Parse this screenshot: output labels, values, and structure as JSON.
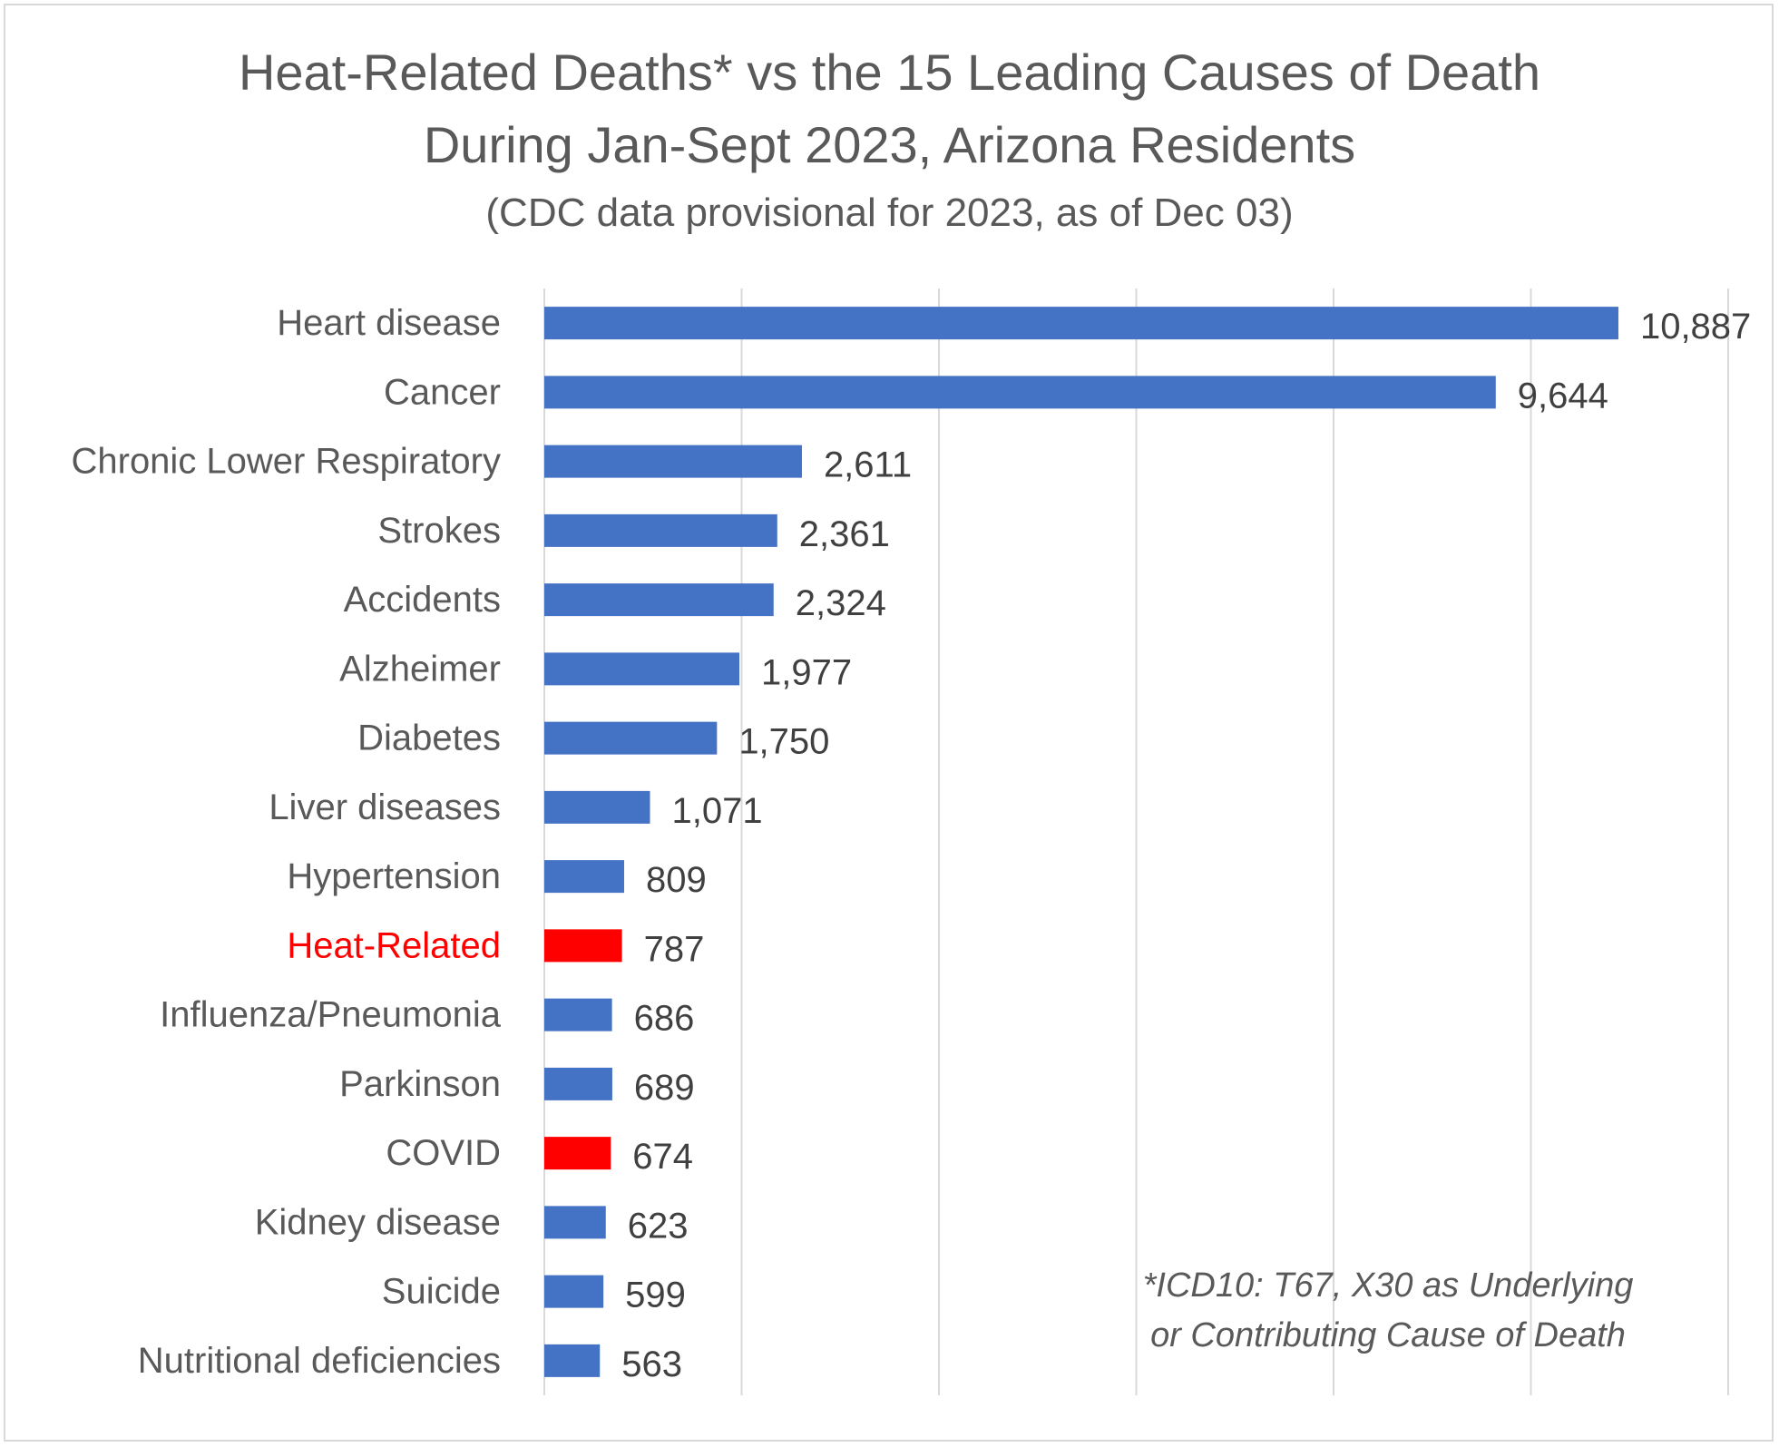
{
  "chart_data": {
    "type": "bar",
    "orientation": "horizontal",
    "title": [
      "Heat-Related Deaths* vs the 15 Leading Causes of Death",
      "During Jan-Sept 2023, Arizona Residents"
    ],
    "subtitle": "(CDC data provisional for 2023, as of Dec 03)",
    "categories": [
      "Heart disease",
      "Cancer",
      "Chronic Lower Respiratory",
      "Strokes",
      "Accidents",
      "Alzheimer",
      "Diabetes",
      "Liver diseases",
      "Hypertension",
      "Heat-Related",
      "Influenza/Pneumonia",
      "Parkinson",
      "COVID",
      "Kidney disease",
      "Suicide",
      "Nutritional deficiencies"
    ],
    "values": [
      10887,
      9644,
      2611,
      2361,
      2324,
      1977,
      1750,
      1071,
      809,
      787,
      686,
      689,
      674,
      623,
      599,
      563
    ],
    "value_labels": [
      "10,887",
      "9,644",
      "2,611",
      "2,361",
      "2,324",
      "1,977",
      "1,750",
      "1,071",
      "809",
      "787",
      "686",
      "689",
      "674",
      "623",
      "599",
      "563"
    ],
    "bar_colors": [
      "#4472c4",
      "#4472c4",
      "#4472c4",
      "#4472c4",
      "#4472c4",
      "#4472c4",
      "#4472c4",
      "#4472c4",
      "#4472c4",
      "#ff0000",
      "#4472c4",
      "#4472c4",
      "#ff0000",
      "#4472c4",
      "#4472c4",
      "#4472c4"
    ],
    "label_colors": [
      "#595959",
      "#595959",
      "#595959",
      "#595959",
      "#595959",
      "#595959",
      "#595959",
      "#595959",
      "#595959",
      "#ff0000",
      "#595959",
      "#595959",
      "#595959",
      "#595959",
      "#595959",
      "#595959"
    ],
    "xlim": [
      0,
      12000
    ],
    "x_gridlines": [
      0,
      2000,
      4000,
      6000,
      8000,
      10000,
      12000
    ],
    "grid": true,
    "xlabel": "",
    "ylabel": "",
    "footnote": [
      "*ICD10: T67, X30 as Underlying",
      "or Contributing Cause of Death"
    ]
  },
  "colors": {
    "bar_default": "#4472c4",
    "bar_highlight": "#ff0000",
    "text": "#595959",
    "value_text": "#404040",
    "gridline": "#d9d9d9"
  }
}
